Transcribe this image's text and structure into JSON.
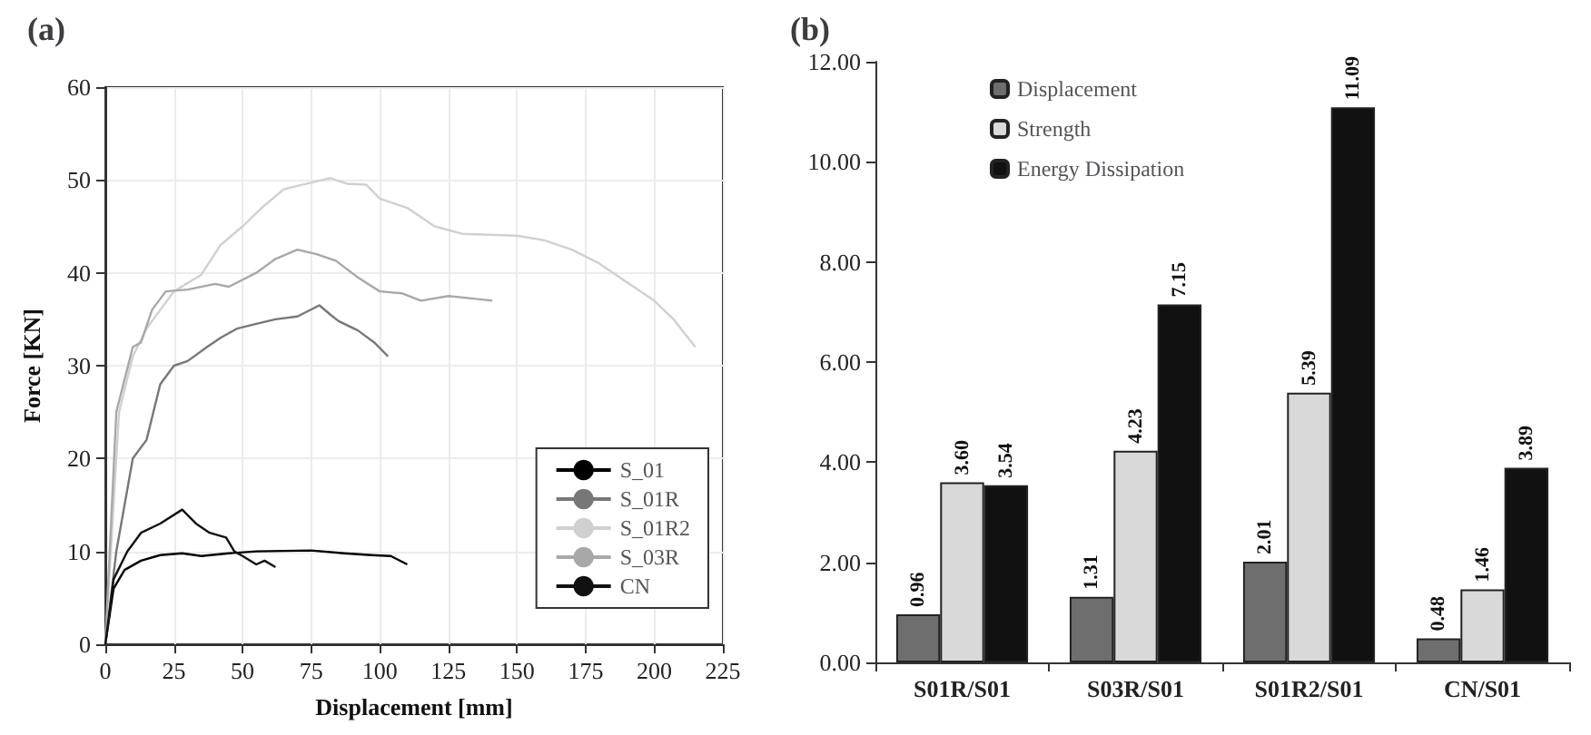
{
  "chart_data": [
    {
      "type": "line",
      "title": "(a)",
      "xlabel": "Displacement [mm]",
      "ylabel": "Force [KN]",
      "xlim": [
        0,
        225
      ],
      "xticks": [
        0,
        25,
        50,
        75,
        100,
        125,
        150,
        175,
        200,
        225
      ],
      "ylim": [
        0,
        60
      ],
      "yticks": [
        0,
        10,
        20,
        30,
        40,
        50,
        60
      ],
      "grid": true,
      "legend": "bottom right",
      "line_style": "solid",
      "series": [
        {
          "name": "S_01",
          "color": "#000000",
          "x": [
            0,
            3,
            7,
            13,
            20,
            28,
            35,
            45,
            55,
            75,
            87,
            97,
            104,
            110
          ],
          "values": [
            0,
            6,
            8,
            9,
            9.6,
            9.8,
            9.5,
            9.8,
            10,
            10.1,
            9.8,
            9.6,
            9.5,
            8.6
          ]
        },
        {
          "name": "S_01R",
          "color": "#777777",
          "x": [
            0,
            4,
            10,
            15,
            20,
            25,
            30,
            37,
            42,
            48,
            55,
            62,
            70,
            78,
            82,
            85,
            92,
            98,
            103
          ],
          "values": [
            0,
            10,
            20,
            22,
            28,
            30,
            30.5,
            32,
            33,
            34,
            34.5,
            35,
            35.3,
            36.5,
            35.5,
            34.8,
            33.8,
            32.5,
            31
          ]
        },
        {
          "name": "S_01R2",
          "color": "#d0d0d0",
          "x": [
            0,
            5,
            10,
            15,
            20,
            25,
            35,
            42,
            50,
            57,
            65,
            72,
            82,
            88,
            95,
            100,
            110,
            120,
            130,
            150,
            160,
            170,
            180,
            190,
            200,
            207,
            215
          ],
          "values": [
            0,
            25,
            31,
            34,
            36,
            38,
            39.8,
            43,
            45,
            47,
            49,
            49.5,
            50.2,
            49.6,
            49.5,
            48,
            47,
            45,
            44.2,
            44,
            43.5,
            42.5,
            41,
            39,
            37,
            35,
            32
          ]
        },
        {
          "name": "S_03R",
          "color": "#a8a8a8",
          "x": [
            0,
            4,
            10,
            13,
            17,
            22,
            30,
            40,
            45,
            55,
            62,
            70,
            77,
            84,
            92,
            100,
            108,
            115,
            125,
            135,
            141
          ],
          "values": [
            0,
            25,
            32,
            32.5,
            36,
            38,
            38.2,
            38.8,
            38.5,
            40,
            41.5,
            42.5,
            42,
            41.3,
            39.5,
            38,
            37.8,
            37,
            37.5,
            37.2,
            37
          ]
        },
        {
          "name": "CN",
          "color": "#111111",
          "x": [
            0,
            3,
            8,
            13,
            20,
            28,
            33,
            38,
            44,
            47,
            50,
            55,
            58,
            62
          ],
          "values": [
            0,
            7,
            10,
            12,
            13,
            14.5,
            13,
            12,
            11.5,
            10,
            9.5,
            8.6,
            9,
            8.3
          ]
        }
      ]
    },
    {
      "type": "bar",
      "title": "(b)",
      "categories": [
        "S01R/S01",
        "S03R/S01",
        "S01R2/S01",
        "CN/S01"
      ],
      "ylim": [
        0,
        12
      ],
      "yticks": [
        {
          "value": 0,
          "label": "0.00"
        },
        {
          "value": 2,
          "label": "2.00"
        },
        {
          "value": 4,
          "label": "4.00"
        },
        {
          "value": 6,
          "label": "6.00"
        },
        {
          "value": 8,
          "label": "8.00"
        },
        {
          "value": 10,
          "label": "10.00"
        },
        {
          "value": 12,
          "label": "12.00"
        }
      ],
      "grid": false,
      "legend": "top left",
      "series": [
        {
          "name": "Displacement",
          "color": "#6e6e6e",
          "values": [
            0.96,
            1.31,
            2.01,
            0.48
          ],
          "value_labels": [
            "0.96",
            "1.31",
            "2.01",
            "0.48"
          ]
        },
        {
          "name": "Strength",
          "color": "#d9d9d9",
          "values": [
            3.6,
            4.23,
            5.39,
            1.46
          ],
          "value_labels": [
            "3.60",
            "4.23",
            "5.39",
            "1.46"
          ]
        },
        {
          "name": "Energy Dissipation",
          "color": "#111111",
          "values": [
            3.54,
            7.15,
            11.09,
            3.89
          ],
          "value_labels": [
            "3.54",
            "7.15",
            "11.09",
            "3.89"
          ]
        }
      ]
    }
  ]
}
